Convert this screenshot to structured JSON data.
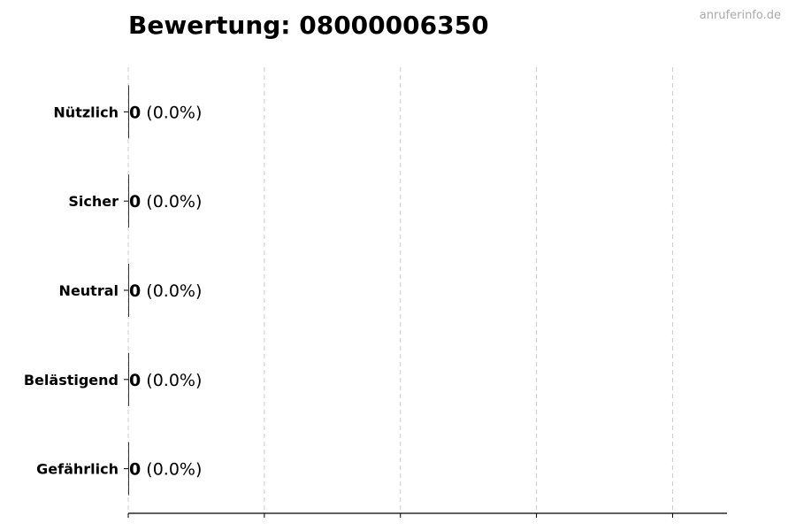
{
  "chart_data": {
    "type": "bar",
    "orientation": "horizontal",
    "title": "Bewertung: 08000006350",
    "watermark": "anruferinfo.de",
    "categories": [
      "Nützlich",
      "Sicher",
      "Neutral",
      "Belästigend",
      "Gefährlich"
    ],
    "values": [
      0,
      0,
      0,
      0,
      0
    ],
    "value_labels": [
      "0",
      "0",
      "0",
      "0",
      "0"
    ],
    "percent_labels": [
      "(0.0%)",
      "(0.0%)",
      "(0.0%)",
      "(0.0%)",
      "(0.0%)"
    ],
    "xlabel": "",
    "ylabel": "",
    "xlim": [
      0,
      4.4
    ],
    "xticks": [
      0,
      1,
      2,
      3,
      4
    ],
    "xtick_labels_shown": false,
    "grid": "x-dashed",
    "bar_color": "#000000",
    "grid_color": "#cccccc"
  }
}
